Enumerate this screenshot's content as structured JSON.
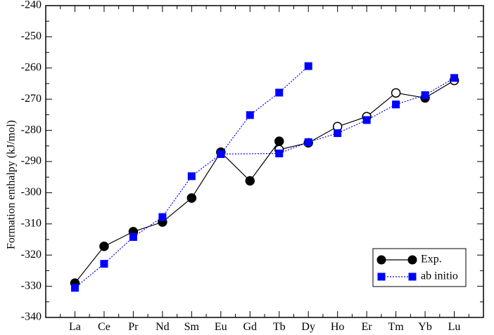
{
  "chart_data": {
    "type": "line",
    "title": "",
    "xlabel": "",
    "ylabel": "Formation enthalpy (kJ/mol)",
    "ylim": [
      -340,
      -240
    ],
    "y_ticks": [
      -340,
      -330,
      -320,
      -310,
      -300,
      -290,
      -280,
      -270,
      -260,
      -250,
      -240
    ],
    "categories": [
      "La",
      "Ce",
      "Pr",
      "Nd",
      "Sm",
      "Eu",
      "Gd",
      "Tb",
      "Dy",
      "Ho",
      "Er",
      "Tm",
      "Yb",
      "Lu"
    ],
    "grid": false,
    "legend_position": "bottom-right",
    "series": [
      {
        "name": "Exp.",
        "color": "#000000",
        "marker": "circle",
        "line": "solid",
        "points": [
          {
            "x": "La",
            "y": -329.0,
            "filled": true
          },
          {
            "x": "Ce",
            "y": -317.2,
            "filled": true
          },
          {
            "x": "Pr",
            "y": -312.5,
            "filled": true
          },
          {
            "x": "Nd",
            "y": -309.4,
            "filled": true
          },
          {
            "x": "Sm",
            "y": -301.7,
            "filled": true
          },
          {
            "x": "Eu",
            "y": -287.0,
            "filled": true
          },
          {
            "x": "Gd",
            "y": -296.2,
            "filled": true
          },
          {
            "x": "Tb",
            "y": -283.5,
            "filled": true
          },
          {
            "x": "Tb",
            "y": -286.2,
            "filled": false
          },
          {
            "x": "Dy",
            "y": -284.0,
            "filled": true
          },
          {
            "x": "Ho",
            "y": -278.8,
            "filled": false
          },
          {
            "x": "Er",
            "y": -275.6,
            "filled": false
          },
          {
            "x": "Tm",
            "y": -268.0,
            "filled": false
          },
          {
            "x": "Yb",
            "y": -269.6,
            "filled": true
          },
          {
            "x": "Lu",
            "y": -264.0,
            "filled": false
          }
        ]
      },
      {
        "name": "ab initio",
        "color": "#0000ff",
        "marker": "square",
        "line": "dotted",
        "points": [
          {
            "x": "La",
            "y": -330.5
          },
          {
            "x": "Ce",
            "y": -322.8
          },
          {
            "x": "Pr",
            "y": -314.2
          },
          {
            "x": "Nd",
            "y": -307.8
          },
          {
            "x": "Sm",
            "y": -294.7
          },
          {
            "x": "Eu",
            "y": -287.6
          },
          {
            "x": "Tb",
            "y": -287.4
          },
          {
            "x": "Dy",
            "y": -283.8
          },
          {
            "x": "Ho",
            "y": -280.9
          },
          {
            "x": "Er",
            "y": -276.7
          },
          {
            "x": "Tm",
            "y": -271.7
          },
          {
            "x": "Yb",
            "y": -268.7
          },
          {
            "x": "Lu",
            "y": -263.2
          }
        ]
      },
      {
        "name": "",
        "color": "#0000ff",
        "marker": "square",
        "line": "dotted",
        "points": [
          {
            "x": "Eu",
            "y": -287.6
          },
          {
            "x": "Gd",
            "y": -275.1
          },
          {
            "x": "Tb",
            "y": -267.9
          },
          {
            "x": "Dy",
            "y": -259.4
          }
        ]
      }
    ]
  }
}
